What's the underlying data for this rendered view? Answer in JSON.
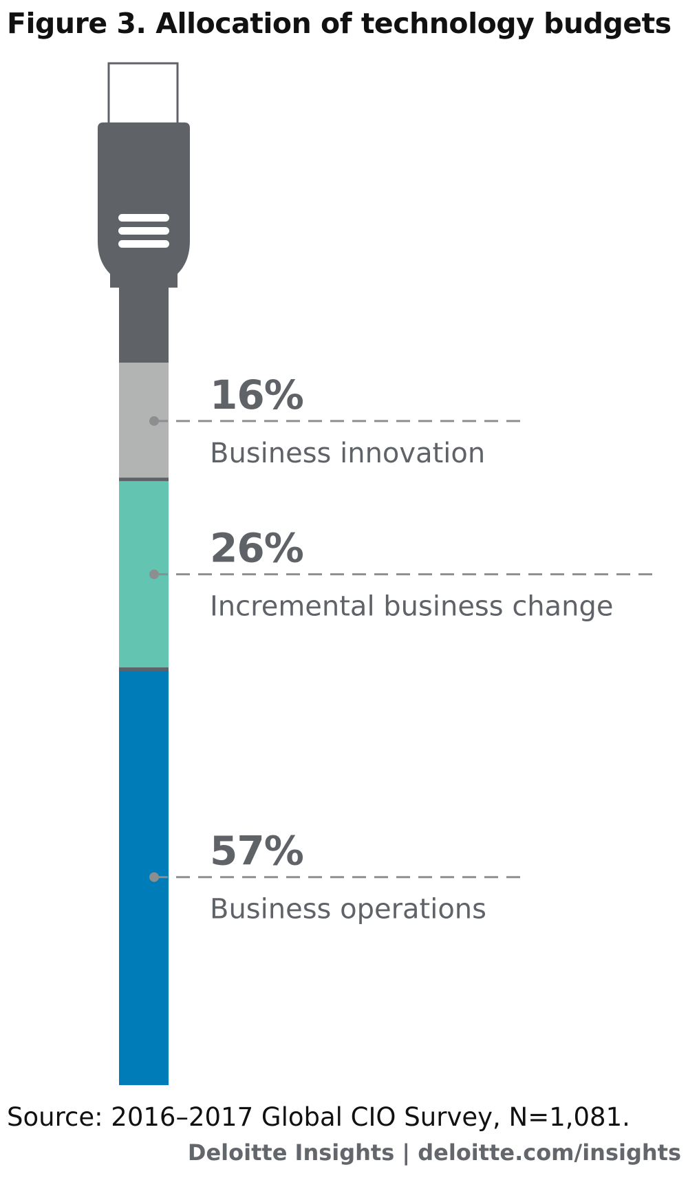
{
  "title": "Figure 3. Allocation of technology budgets",
  "source": "Source: 2016–2017 Global CIO Survey, N=1,081.",
  "credit": "Deloitte Insights | deloitte.com/insights",
  "colors": {
    "plug": "#5f6368",
    "marker": "#8c8e90",
    "dash": "#8c8e90",
    "label": "#5f6368",
    "separator": "#5f6368"
  },
  "chart_data": {
    "type": "bar",
    "orientation": "stacked-vertical",
    "title": "Figure 3. Allocation of technology budgets",
    "unit": "%",
    "segments": [
      {
        "category": "Business innovation",
        "value": 16,
        "label": "16%",
        "color": "#b2b4b4"
      },
      {
        "category": "Incremental business change",
        "value": 26,
        "label": "26%",
        "color": "#62c4b1"
      },
      {
        "category": "Business operations",
        "value": 57,
        "label": "57%",
        "color": "#007cb8"
      }
    ]
  }
}
